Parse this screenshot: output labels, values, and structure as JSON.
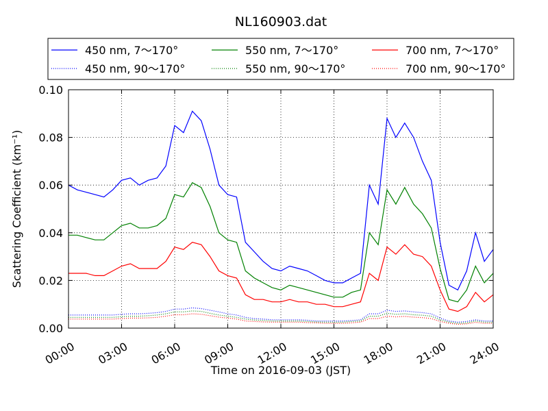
{
  "chart_data": {
    "type": "line",
    "title": "NL160903.dat",
    "xlabel": "Time on 2016-09-03 (JST)",
    "ylabel": "Scattering Coefficient (km⁻¹)",
    "x_unit": "hours",
    "xlim": [
      0,
      24
    ],
    "ylim": [
      0,
      0.1
    ],
    "x_ticks": [
      {
        "value": 0,
        "label": "00:00"
      },
      {
        "value": 3,
        "label": "03:00"
      },
      {
        "value": 6,
        "label": "06:00"
      },
      {
        "value": 9,
        "label": "09:00"
      },
      {
        "value": 12,
        "label": "12:00"
      },
      {
        "value": 15,
        "label": "15:00"
      },
      {
        "value": 18,
        "label": "18:00"
      },
      {
        "value": 21,
        "label": "21:00"
      },
      {
        "value": 24,
        "label": "24:00"
      }
    ],
    "y_ticks": [
      {
        "value": 0,
        "label": "0.00"
      },
      {
        "value": 0.02,
        "label": "0.02"
      },
      {
        "value": 0.04,
        "label": "0.04"
      },
      {
        "value": 0.06,
        "label": "0.06"
      },
      {
        "value": 0.08,
        "label": "0.08"
      },
      {
        "value": 0.1,
        "label": "0.10"
      }
    ],
    "grid": true,
    "legend_position": "top",
    "x": [
      0,
      0.5,
      1,
      1.5,
      2,
      2.5,
      3,
      3.5,
      4,
      4.5,
      5,
      5.5,
      6,
      6.5,
      7,
      7.5,
      8,
      8.5,
      9,
      9.5,
      10,
      10.5,
      11,
      11.5,
      12,
      12.5,
      13,
      13.5,
      14,
      14.5,
      15,
      15.5,
      16,
      16.5,
      17,
      17.5,
      18,
      18.5,
      19,
      19.5,
      20,
      20.5,
      21,
      21.5,
      22,
      22.5,
      23,
      23.5,
      24
    ],
    "series": [
      {
        "name": "450 nm, 7～170°",
        "color": "#0000ff",
        "style": "solid",
        "values": [
          0.06,
          0.058,
          0.057,
          0.056,
          0.055,
          0.058,
          0.062,
          0.063,
          0.06,
          0.062,
          0.063,
          0.068,
          0.085,
          0.082,
          0.091,
          0.087,
          0.075,
          0.06,
          0.056,
          0.055,
          0.036,
          0.032,
          0.028,
          0.025,
          0.024,
          0.026,
          0.025,
          0.024,
          0.022,
          0.02,
          0.019,
          0.019,
          0.021,
          0.023,
          0.06,
          0.052,
          0.088,
          0.08,
          0.086,
          0.08,
          0.07,
          0.062,
          0.036,
          0.018,
          0.016,
          0.024,
          0.04,
          0.028,
          0.033
        ]
      },
      {
        "name": "450 nm, 90～170°",
        "color": "#0000ff",
        "style": "dotted",
        "values": [
          0.0055,
          0.0055,
          0.0055,
          0.0055,
          0.0055,
          0.0055,
          0.0058,
          0.006,
          0.006,
          0.0062,
          0.0065,
          0.007,
          0.008,
          0.008,
          0.0085,
          0.0082,
          0.0075,
          0.0068,
          0.006,
          0.0055,
          0.0045,
          0.004,
          0.0038,
          0.0035,
          0.0035,
          0.0035,
          0.0035,
          0.0033,
          0.003,
          0.003,
          0.003,
          0.003,
          0.0032,
          0.0035,
          0.006,
          0.006,
          0.0075,
          0.007,
          0.0072,
          0.0068,
          0.0065,
          0.006,
          0.0042,
          0.003,
          0.0025,
          0.0028,
          0.0035,
          0.003,
          0.003
        ]
      },
      {
        "name": "550 nm, 7～170°",
        "color": "#008000",
        "style": "solid",
        "values": [
          0.039,
          0.039,
          0.038,
          0.037,
          0.037,
          0.04,
          0.043,
          0.044,
          0.042,
          0.042,
          0.043,
          0.046,
          0.056,
          0.055,
          0.061,
          0.059,
          0.051,
          0.04,
          0.037,
          0.036,
          0.024,
          0.021,
          0.019,
          0.017,
          0.016,
          0.018,
          0.017,
          0.016,
          0.015,
          0.014,
          0.013,
          0.013,
          0.015,
          0.016,
          0.04,
          0.035,
          0.058,
          0.052,
          0.059,
          0.052,
          0.048,
          0.042,
          0.025,
          0.012,
          0.011,
          0.016,
          0.026,
          0.019,
          0.023
        ]
      },
      {
        "name": "550 nm, 90～170°",
        "color": "#008000",
        "style": "dotted",
        "values": [
          0.0045,
          0.0045,
          0.0045,
          0.0045,
          0.0045,
          0.0045,
          0.0048,
          0.005,
          0.005,
          0.0052,
          0.0055,
          0.006,
          0.0068,
          0.0068,
          0.0072,
          0.007,
          0.0062,
          0.0055,
          0.005,
          0.0045,
          0.0038,
          0.0034,
          0.0032,
          0.003,
          0.003,
          0.003,
          0.003,
          0.0028,
          0.0026,
          0.0025,
          0.0025,
          0.0025,
          0.0028,
          0.003,
          0.005,
          0.005,
          0.0062,
          0.0058,
          0.006,
          0.0056,
          0.0054,
          0.005,
          0.0035,
          0.0025,
          0.002,
          0.0022,
          0.003,
          0.0025,
          0.0025
        ]
      },
      {
        "name": "700 nm, 7～170°",
        "color": "#ff0000",
        "style": "solid",
        "values": [
          0.023,
          0.023,
          0.023,
          0.022,
          0.022,
          0.024,
          0.026,
          0.027,
          0.025,
          0.025,
          0.025,
          0.028,
          0.034,
          0.033,
          0.036,
          0.035,
          0.03,
          0.024,
          0.022,
          0.021,
          0.014,
          0.012,
          0.012,
          0.011,
          0.011,
          0.012,
          0.011,
          0.011,
          0.01,
          0.01,
          0.009,
          0.009,
          0.01,
          0.011,
          0.023,
          0.02,
          0.034,
          0.031,
          0.035,
          0.031,
          0.03,
          0.026,
          0.016,
          0.008,
          0.007,
          0.009,
          0.015,
          0.011,
          0.014
        ]
      },
      {
        "name": "700 nm, 90～170°",
        "color": "#ff0000",
        "style": "dotted",
        "values": [
          0.0038,
          0.0038,
          0.0038,
          0.0038,
          0.0038,
          0.0038,
          0.004,
          0.0042,
          0.0042,
          0.0043,
          0.0045,
          0.005,
          0.0056,
          0.0056,
          0.006,
          0.0058,
          0.0052,
          0.0046,
          0.0042,
          0.0038,
          0.003,
          0.0028,
          0.0026,
          0.0025,
          0.0025,
          0.0025,
          0.0025,
          0.0023,
          0.0022,
          0.002,
          0.002,
          0.002,
          0.0022,
          0.0025,
          0.004,
          0.004,
          0.005,
          0.0047,
          0.0049,
          0.0046,
          0.0044,
          0.004,
          0.0028,
          0.002,
          0.0016,
          0.0018,
          0.0024,
          0.002,
          0.002
        ]
      }
    ]
  }
}
